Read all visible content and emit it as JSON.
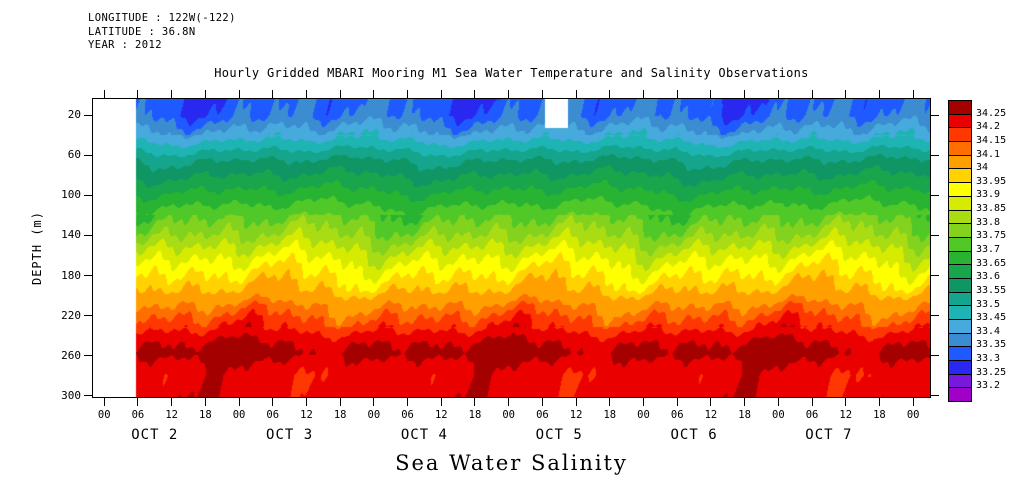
{
  "header": {
    "longitude": "LONGITUDE : 122W(-122)",
    "latitude": "LATITUDE : 36.8N",
    "year": "YEAR : 2012"
  },
  "title": "Hourly Gridded MBARI Mooring M1 Sea Water Temperature and Salinity Observations",
  "caption": "Sea Water Salinity",
  "y_axis": {
    "label": "DEPTH (m)"
  },
  "colorbar": {
    "labels_top_to_bottom": [
      "34.25",
      "34.2",
      "34.15",
      "34.1",
      "34",
      "33.95",
      "33.9",
      "33.85",
      "33.8",
      "33.75",
      "33.7",
      "33.65",
      "33.6",
      "33.55",
      "33.5",
      "33.45",
      "33.4",
      "33.35",
      "33.3",
      "33.25",
      "33.2"
    ]
  },
  "chart_data": {
    "type": "filled_contour",
    "title": "Hourly Gridded MBARI Mooring M1 Sea Water Temperature and Salinity Observations",
    "variable_caption": "Sea Water Salinity",
    "ylabel": "DEPTH (m)",
    "y_ticks_m": [
      20,
      60,
      100,
      140,
      180,
      220,
      260,
      300
    ],
    "depth_range_m": [
      4,
      301
    ],
    "time_axis": {
      "tick_labels_sequence": [
        "00",
        "06",
        "12",
        "18",
        "00",
        "06",
        "12",
        "18",
        "00",
        "06",
        "12",
        "18",
        "00",
        "06",
        "12",
        "18",
        "00",
        "06",
        "12",
        "18",
        "00",
        "06",
        "12",
        "18",
        "00"
      ],
      "tick_step_hours": 6,
      "first_tick_hour": 0,
      "range_hours": [
        -2,
        147
      ],
      "day_labels": [
        "OCT 2",
        "OCT 3",
        "OCT 4",
        "OCT 5",
        "OCT 6",
        "OCT 7"
      ],
      "day_label_center_hours": [
        9,
        33,
        57,
        81,
        105,
        129
      ]
    },
    "contour_levels": [
      33.2,
      33.25,
      33.3,
      33.35,
      33.4,
      33.45,
      33.5,
      33.55,
      33.6,
      33.65,
      33.7,
      33.75,
      33.8,
      33.85,
      33.9,
      33.95,
      34,
      34.1,
      34.15,
      34.2,
      34.25
    ],
    "colors_low_to_high": [
      "#A000C8",
      "#7818DC",
      "#2828F0",
      "#1E5AFF",
      "#3C8CD2",
      "#46AADC",
      "#1EB4B4",
      "#14A58C",
      "#0F9664",
      "#19A54B",
      "#28B432",
      "#50C828",
      "#82D21E",
      "#AADC14",
      "#D7EB00",
      "#FFFF00",
      "#FFD200",
      "#FFA000",
      "#FF6E00",
      "#FF3700",
      "#EB0000",
      "#A50000"
    ],
    "mean_salinity_profile_depth_psu": [
      [
        4,
        33.33
      ],
      [
        20,
        33.34
      ],
      [
        45,
        33.45
      ],
      [
        55,
        33.5
      ],
      [
        65,
        33.55
      ],
      [
        80,
        33.6
      ],
      [
        95,
        33.65
      ],
      [
        110,
        33.7
      ],
      [
        125,
        33.75
      ],
      [
        140,
        33.8
      ],
      [
        152,
        33.85
      ],
      [
        165,
        33.9
      ],
      [
        180,
        33.95
      ],
      [
        195,
        34.0
      ],
      [
        210,
        34.1
      ],
      [
        222,
        34.15
      ],
      [
        235,
        34.2
      ],
      [
        248,
        34.25
      ],
      [
        258,
        34.27
      ],
      [
        268,
        34.24
      ],
      [
        280,
        34.22
      ],
      [
        301,
        34.23
      ]
    ],
    "data_start_hour": 5.5,
    "missing_region": {
      "t_start_hour": 78.5,
      "t_end_hour": 82.5,
      "depth_max_m": 32
    }
  }
}
